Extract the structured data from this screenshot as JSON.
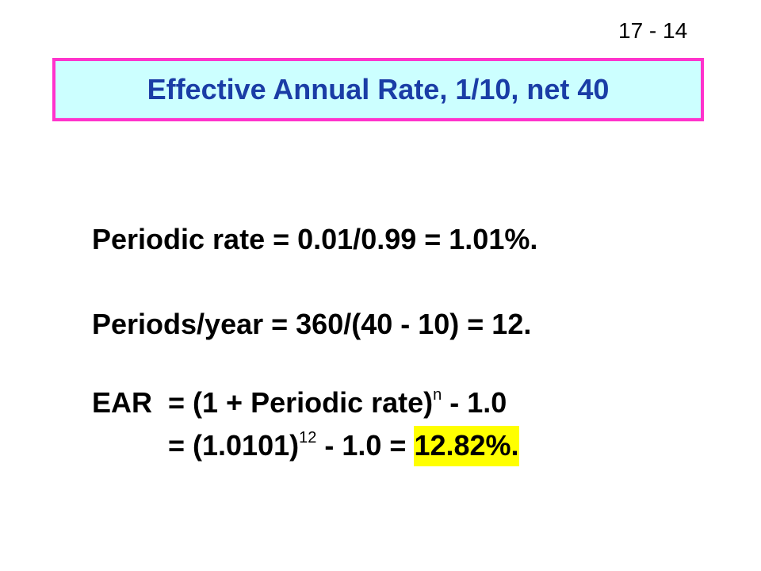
{
  "slide_number": "17 - 14",
  "title": "Effective Annual Rate, 1/10, net 40",
  "lines": {
    "periodic_rate": "Periodic rate = 0.01/0.99 = 1.01%.",
    "periods_per_year": "Periods/year = 360/(40 - 10) = 12."
  },
  "ear": {
    "label": "EAR",
    "line1_prefix": "= (1 + Periodic rate)",
    "line1_exponent": "n",
    "line1_suffix": " - 1.0",
    "line2_prefix": "= (1.0101)",
    "line2_exponent": "12",
    "line2_suffix": " - 1.0 = ",
    "result": "12.82%."
  },
  "colors": {
    "title_border": "#ff33cc",
    "title_fill": "#ccffff",
    "title_text": "#1a3da6",
    "result_highlight": "#ffff00"
  }
}
